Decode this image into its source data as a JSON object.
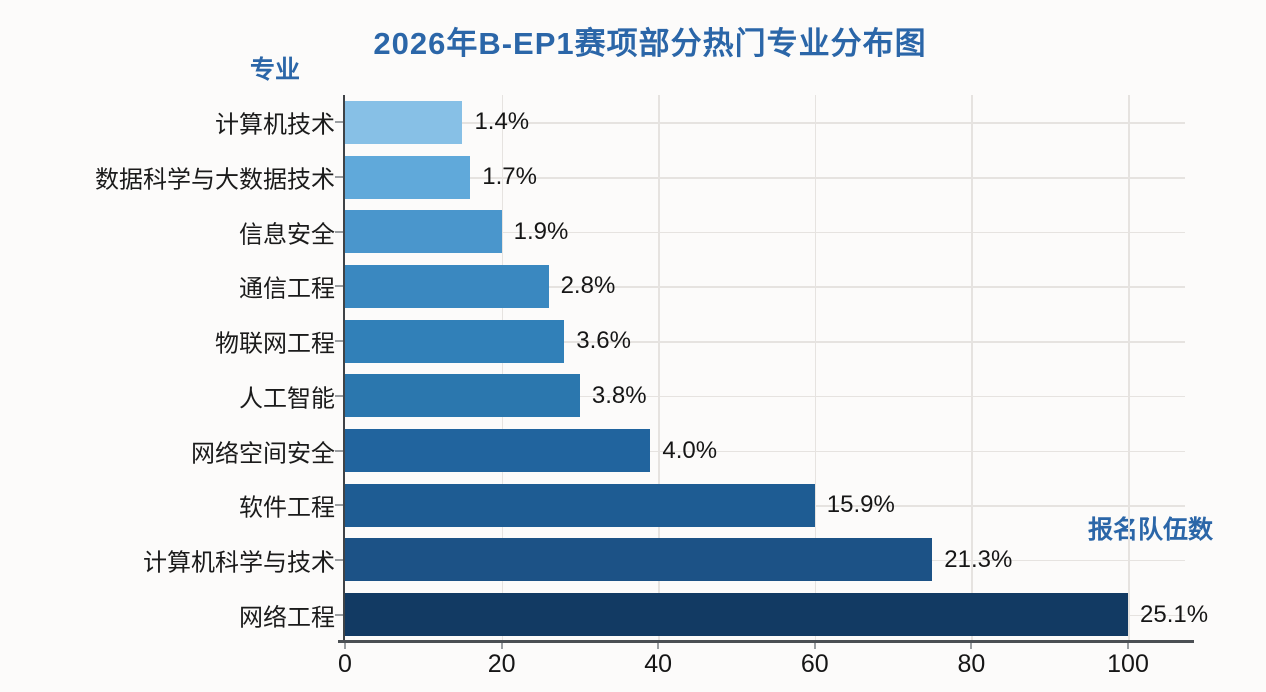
{
  "header": {
    "title": "2026年B-EP1赛项部分热门专业分布图"
  },
  "axes": {
    "y_label": "专业",
    "x_label": "报名队伍数"
  },
  "chart_data": {
    "type": "bar",
    "orientation": "horizontal",
    "title": "2026年B-EP1赛项部分热门专业分布图",
    "ylabel": "专业",
    "xlabel": "报名队伍数",
    "categories": [
      "计算机技术",
      "数据科学与大数据技术",
      "信息安全",
      "通信工程",
      "物联网工程",
      "人工智能",
      "网络空间安全",
      "软件工程",
      "计算机科学与技术",
      "网络工程"
    ],
    "series": [
      {
        "name": "报名队伍数",
        "values": [
          15,
          16,
          20,
          26,
          28,
          30,
          39,
          60,
          75,
          100
        ]
      }
    ],
    "data_labels": [
      "1.4%",
      "1.7%",
      "1.9%",
      "2.8%",
      "3.6%",
      "3.8%",
      "4.0%",
      "15.9%",
      "21.3%",
      "25.1%"
    ],
    "x_ticks": [
      0,
      20,
      40,
      60,
      80,
      100
    ],
    "xlim": [
      0,
      107
    ],
    "grid": true,
    "legend": false,
    "bar_colors": [
      "#87c0e6",
      "#60a9da",
      "#4a96cc",
      "#3a88c0",
      "#3180b8",
      "#2b77ae",
      "#21649e",
      "#1e5c93",
      "#1c5286",
      "#123a63"
    ]
  },
  "style": {
    "title_color": "#2b66a8",
    "axis_caption_color": "#2b66a8",
    "grid_color": "#e6e3e0",
    "axis_line_color": "#4b4f53",
    "text_color": "#1b1b1b",
    "background": "#fcfbfa"
  }
}
